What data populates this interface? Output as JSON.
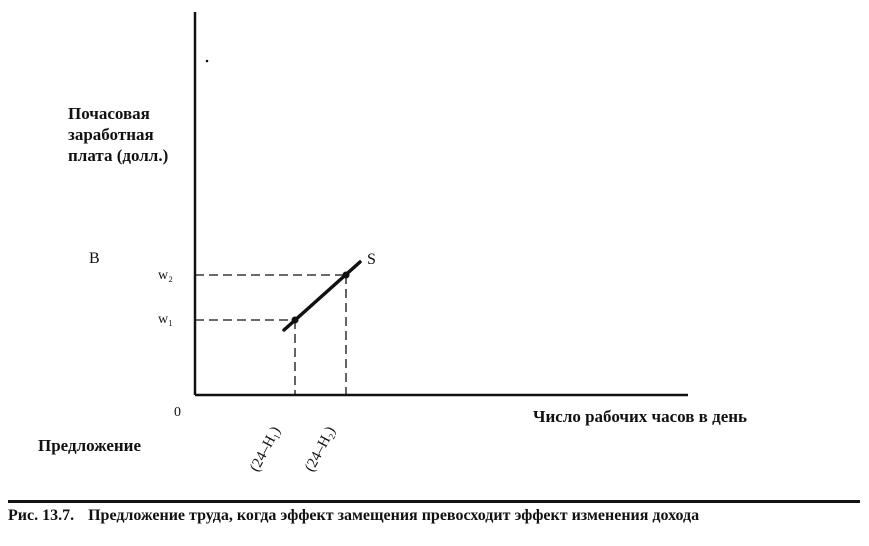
{
  "diagram": {
    "y_axis_label": [
      "Почасовая",
      "заработная",
      "плата (долл.)"
    ],
    "x_axis_label": "Число рабочих часов в день",
    "panel_label": "В",
    "origin_label": "0",
    "curve_label": "S",
    "wage_labels": {
      "w2": "w₂",
      "w1": "w₁"
    },
    "hours_labels": {
      "h1": "(24–H₁)",
      "h2": "(24–H₂)"
    },
    "supply_label": "Предложение"
  },
  "caption": {
    "number": "Рис. 13.7.",
    "text": "Предложение труда, когда эффект замещения превосходит эффект изменения дохода"
  },
  "colors": {
    "ink": "#111111",
    "background": "#ffffff"
  }
}
